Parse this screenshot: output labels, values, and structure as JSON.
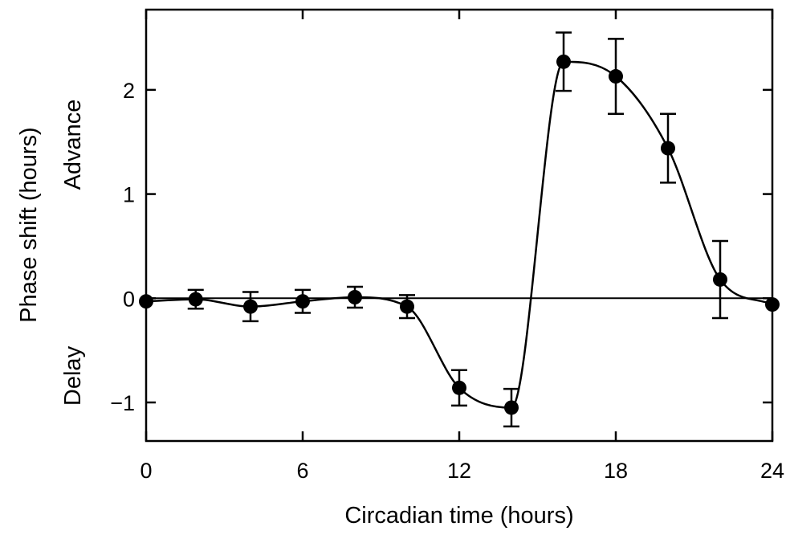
{
  "chart_data": {
    "type": "line",
    "xlabel": "Circadian time (hours)",
    "ylabel": "Phase shift (hours)",
    "ylabel_top": "Advance",
    "ylabel_bottom": "Delay",
    "xlim": [
      0,
      24
    ],
    "ylim": [
      -1.37,
      2.77
    ],
    "x_ticks": [
      0,
      6,
      12,
      18,
      24
    ],
    "y_ticks": [
      -1,
      0,
      1,
      2
    ],
    "x_tick_labels": [
      "0",
      "6",
      "12",
      "18",
      "24"
    ],
    "y_tick_labels": [
      "−1",
      "0",
      "1",
      "2"
    ],
    "zero_line": true,
    "grid": false,
    "series": [
      {
        "x": [
          0,
          1.9,
          4,
          6,
          8,
          10,
          12,
          14,
          16,
          18,
          20,
          22,
          24
        ],
        "y": [
          -0.03,
          -0.01,
          -0.08,
          -0.03,
          0.01,
          -0.08,
          -0.86,
          -1.05,
          2.27,
          2.13,
          1.44,
          0.18,
          -0.06
        ],
        "error": [
          0,
          0.09,
          0.14,
          0.11,
          0.1,
          0.11,
          0.17,
          0.18,
          0.28,
          0.36,
          0.33,
          0.37,
          0
        ]
      }
    ]
  }
}
